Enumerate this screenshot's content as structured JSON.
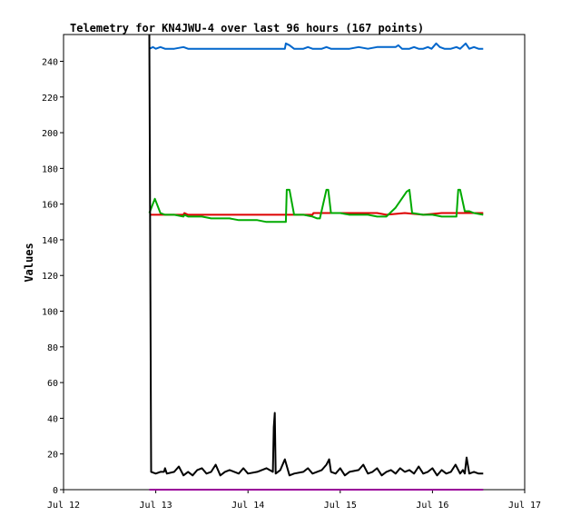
{
  "chart_data": {
    "type": "line",
    "title": "Telemetry for KN4JWU-4 over last 96 hours (167 points)",
    "ylabel": "Values",
    "xlabel": "",
    "ylim": [
      0,
      255
    ],
    "xlim": [
      0,
      5
    ],
    "y_ticks": [
      0,
      20,
      40,
      60,
      80,
      100,
      120,
      140,
      160,
      180,
      200,
      220,
      240
    ],
    "x_ticks": [
      {
        "value": 0,
        "label": "Jul 12"
      },
      {
        "value": 1,
        "label": "Jul 13"
      },
      {
        "value": 2,
        "label": "Jul 14"
      },
      {
        "value": 3,
        "label": "Jul 15"
      },
      {
        "value": 4,
        "label": "Jul 16"
      },
      {
        "value": 5,
        "label": "Jul 17"
      }
    ],
    "series": [
      {
        "color": "#0066cc",
        "points": [
          [
            0.93,
            247
          ],
          [
            0.97,
            248
          ],
          [
            1.0,
            247
          ],
          [
            1.05,
            248
          ],
          [
            1.1,
            247
          ],
          [
            1.2,
            247
          ],
          [
            1.3,
            248
          ],
          [
            1.35,
            247
          ],
          [
            1.5,
            247
          ],
          [
            1.7,
            247
          ],
          [
            1.9,
            247
          ],
          [
            2.1,
            247
          ],
          [
            2.3,
            247
          ],
          [
            2.4,
            247
          ],
          [
            2.41,
            250
          ],
          [
            2.45,
            249
          ],
          [
            2.5,
            247
          ],
          [
            2.6,
            247
          ],
          [
            2.65,
            248
          ],
          [
            2.7,
            247
          ],
          [
            2.8,
            247
          ],
          [
            2.85,
            248
          ],
          [
            2.9,
            247
          ],
          [
            3.0,
            247
          ],
          [
            3.1,
            247
          ],
          [
            3.2,
            248
          ],
          [
            3.3,
            247
          ],
          [
            3.4,
            248
          ],
          [
            3.5,
            248
          ],
          [
            3.6,
            248
          ],
          [
            3.63,
            249
          ],
          [
            3.67,
            247
          ],
          [
            3.75,
            247
          ],
          [
            3.8,
            248
          ],
          [
            3.85,
            247
          ],
          [
            3.9,
            247
          ],
          [
            3.95,
            248
          ],
          [
            3.99,
            247
          ],
          [
            4.04,
            250
          ],
          [
            4.08,
            248
          ],
          [
            4.13,
            247
          ],
          [
            4.2,
            247
          ],
          [
            4.26,
            248
          ],
          [
            4.3,
            247
          ],
          [
            4.36,
            250
          ],
          [
            4.4,
            247
          ],
          [
            4.45,
            248
          ],
          [
            4.5,
            247
          ],
          [
            4.55,
            247
          ]
        ]
      },
      {
        "color": "#dd0000",
        "points": [
          [
            0.93,
            154
          ],
          [
            1.0,
            154
          ],
          [
            1.2,
            154
          ],
          [
            1.3,
            154
          ],
          [
            1.31,
            155
          ],
          [
            1.35,
            154
          ],
          [
            1.5,
            154
          ],
          [
            1.7,
            154
          ],
          [
            1.9,
            154
          ],
          [
            2.1,
            154
          ],
          [
            2.3,
            154
          ],
          [
            2.5,
            154
          ],
          [
            2.7,
            154
          ],
          [
            2.71,
            155
          ],
          [
            2.9,
            155
          ],
          [
            3.1,
            155
          ],
          [
            3.3,
            155
          ],
          [
            3.4,
            155
          ],
          [
            3.5,
            154
          ],
          [
            3.7,
            155
          ],
          [
            3.9,
            154
          ],
          [
            4.1,
            155
          ],
          [
            4.3,
            155
          ],
          [
            4.55,
            155
          ]
        ]
      },
      {
        "color": "#00aa00",
        "points": [
          [
            0.93,
            155
          ],
          [
            0.99,
            163
          ],
          [
            1.05,
            155
          ],
          [
            1.1,
            154
          ],
          [
            1.2,
            154
          ],
          [
            1.3,
            153
          ],
          [
            1.31,
            154
          ],
          [
            1.35,
            153
          ],
          [
            1.4,
            153
          ],
          [
            1.5,
            153
          ],
          [
            1.6,
            152
          ],
          [
            1.7,
            152
          ],
          [
            1.8,
            152
          ],
          [
            1.9,
            151
          ],
          [
            2.0,
            151
          ],
          [
            2.1,
            151
          ],
          [
            2.2,
            150
          ],
          [
            2.3,
            150
          ],
          [
            2.41,
            150
          ],
          [
            2.42,
            168
          ],
          [
            2.45,
            168
          ],
          [
            2.5,
            154
          ],
          [
            2.6,
            154
          ],
          [
            2.7,
            153
          ],
          [
            2.75,
            152
          ],
          [
            2.78,
            152
          ],
          [
            2.85,
            168
          ],
          [
            2.87,
            168
          ],
          [
            2.9,
            155
          ],
          [
            3.0,
            155
          ],
          [
            3.1,
            154
          ],
          [
            3.2,
            154
          ],
          [
            3.3,
            154
          ],
          [
            3.4,
            153
          ],
          [
            3.45,
            153
          ],
          [
            3.5,
            153
          ],
          [
            3.6,
            158
          ],
          [
            3.72,
            167
          ],
          [
            3.75,
            168
          ],
          [
            3.78,
            155
          ],
          [
            3.9,
            154
          ],
          [
            4.0,
            154
          ],
          [
            4.1,
            153
          ],
          [
            4.2,
            153
          ],
          [
            4.26,
            153
          ],
          [
            4.28,
            168
          ],
          [
            4.3,
            168
          ],
          [
            4.35,
            156
          ],
          [
            4.4,
            156
          ],
          [
            4.45,
            155
          ],
          [
            4.55,
            154
          ]
        ]
      },
      {
        "color": "#000000",
        "points": [
          [
            0.93,
            255
          ],
          [
            0.94,
            133
          ],
          [
            0.95,
            10
          ],
          [
            1.0,
            9
          ],
          [
            1.05,
            10
          ],
          [
            1.09,
            10
          ],
          [
            1.1,
            12
          ],
          [
            1.12,
            9
          ],
          [
            1.2,
            10
          ],
          [
            1.25,
            13
          ],
          [
            1.3,
            8
          ],
          [
            1.35,
            10
          ],
          [
            1.4,
            8
          ],
          [
            1.45,
            11
          ],
          [
            1.5,
            12
          ],
          [
            1.55,
            9
          ],
          [
            1.6,
            10
          ],
          [
            1.65,
            14
          ],
          [
            1.7,
            8
          ],
          [
            1.75,
            10
          ],
          [
            1.8,
            11
          ],
          [
            1.9,
            9
          ],
          [
            1.95,
            12
          ],
          [
            2.0,
            9
          ],
          [
            2.1,
            10
          ],
          [
            2.2,
            12
          ],
          [
            2.27,
            10
          ],
          [
            2.28,
            35
          ],
          [
            2.29,
            43
          ],
          [
            2.3,
            9
          ],
          [
            2.35,
            11
          ],
          [
            2.4,
            17
          ],
          [
            2.45,
            8
          ],
          [
            2.5,
            9
          ],
          [
            2.6,
            10
          ],
          [
            2.65,
            12
          ],
          [
            2.7,
            9
          ],
          [
            2.8,
            11
          ],
          [
            2.85,
            14
          ],
          [
            2.88,
            17
          ],
          [
            2.9,
            10
          ],
          [
            2.95,
            9
          ],
          [
            3.0,
            12
          ],
          [
            3.05,
            8
          ],
          [
            3.1,
            10
          ],
          [
            3.2,
            11
          ],
          [
            3.25,
            14
          ],
          [
            3.3,
            9
          ],
          [
            3.35,
            10
          ],
          [
            3.4,
            12
          ],
          [
            3.45,
            8
          ],
          [
            3.5,
            10
          ],
          [
            3.55,
            11
          ],
          [
            3.6,
            9
          ],
          [
            3.65,
            12
          ],
          [
            3.7,
            10
          ],
          [
            3.75,
            11
          ],
          [
            3.8,
            9
          ],
          [
            3.85,
            13
          ],
          [
            3.9,
            9
          ],
          [
            3.95,
            10
          ],
          [
            4.0,
            12
          ],
          [
            4.05,
            8
          ],
          [
            4.1,
            11
          ],
          [
            4.15,
            9
          ],
          [
            4.2,
            10
          ],
          [
            4.25,
            14
          ],
          [
            4.3,
            9
          ],
          [
            4.33,
            11
          ],
          [
            4.35,
            9
          ],
          [
            4.37,
            18
          ],
          [
            4.4,
            9
          ],
          [
            4.45,
            10
          ],
          [
            4.5,
            9
          ],
          [
            4.55,
            9
          ]
        ]
      },
      {
        "color": "#990099",
        "points": [
          [
            0.93,
            0
          ],
          [
            4.55,
            0
          ]
        ]
      }
    ],
    "grid": false,
    "legend": "none"
  }
}
